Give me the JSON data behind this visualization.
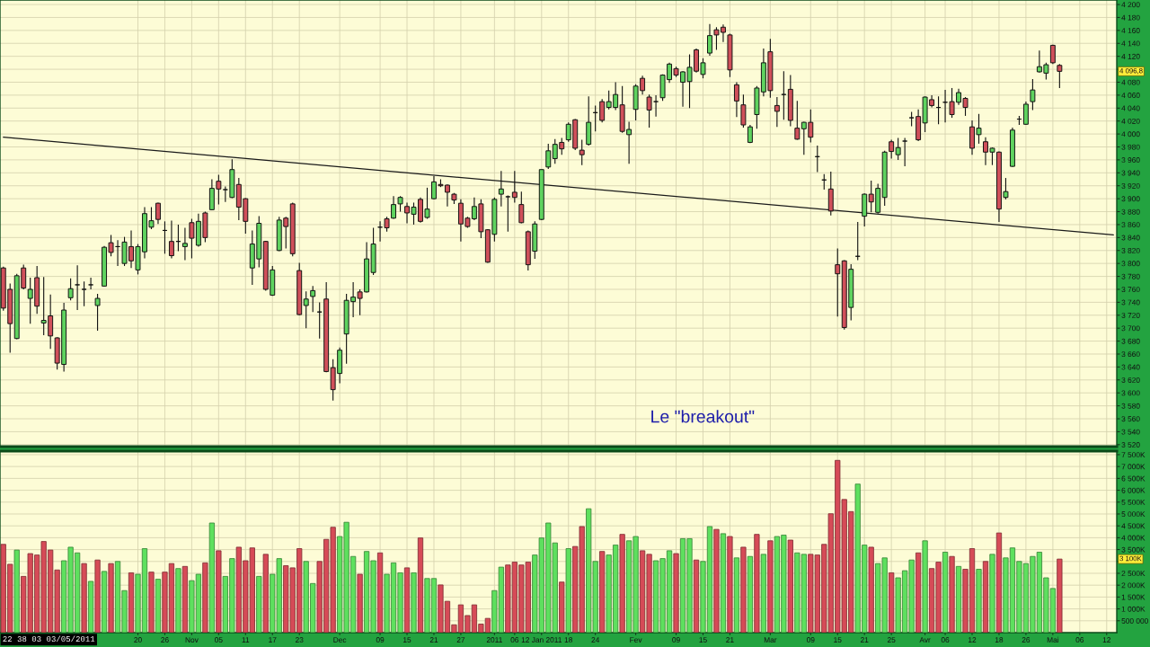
{
  "chart_data": [
    {
      "type": "candlestick",
      "categories": [
        null,
        null,
        null,
        null,
        null,
        null,
        null,
        null,
        null,
        null,
        null,
        null,
        null,
        null,
        null,
        null,
        null,
        null,
        null,
        null,
        null,
        null,
        null,
        null,
        null,
        null,
        null,
        null,
        null,
        null,
        null,
        null,
        null,
        null,
        null,
        null,
        null,
        null,
        null,
        null,
        null,
        null,
        null,
        null,
        null,
        null,
        null,
        null,
        null,
        null,
        null,
        null,
        null,
        null,
        null,
        null,
        null,
        null,
        null,
        null,
        null,
        null,
        null,
        null,
        null,
        null,
        null,
        null,
        null,
        null,
        null,
        null,
        null,
        null,
        null,
        null,
        null,
        null,
        null,
        null,
        null,
        null,
        null,
        null,
        null,
        null,
        null,
        null,
        null,
        null,
        null,
        null,
        null,
        null,
        null,
        null,
        null,
        null,
        null,
        null,
        null,
        null,
        null,
        null,
        null,
        null,
        null,
        null,
        null,
        null,
        null,
        null,
        null,
        null,
        null,
        null,
        null,
        null,
        null,
        null,
        null,
        null,
        null,
        null,
        null,
        null,
        null,
        null,
        null,
        null,
        null,
        null,
        null,
        null,
        null,
        null,
        null,
        null,
        null,
        null,
        null,
        null,
        null,
        null,
        null,
        null,
        null,
        null,
        null,
        null,
        null,
        null,
        null,
        null,
        null,
        null,
        null,
        null,
        null,
        null,
        null,
        null,
        null,
        null,
        null,
        null
      ],
      "ohlc": [
        [
          3793,
          3795,
          3727,
          3731
        ],
        [
          3760,
          3769,
          3662,
          3707
        ],
        [
          3684,
          3784,
          3683,
          3781
        ],
        [
          3793,
          3798,
          3760,
          3762
        ],
        [
          3746,
          3778,
          3707,
          3760
        ],
        [
          3778,
          3796,
          3722,
          3734
        ],
        [
          3708,
          3779,
          3689,
          3712
        ],
        [
          3719,
          3752,
          3668,
          3688
        ],
        [
          3685,
          3686,
          3636,
          3646
        ],
        [
          3644,
          3739,
          3633,
          3728
        ],
        [
          3747,
          3777,
          3743,
          3761
        ],
        [
          3767,
          3797,
          3728,
          3767
        ],
        [
          3760,
          3772,
          3734,
          3760
        ],
        [
          3767,
          3778,
          3760,
          3767
        ],
        [
          3735,
          3753,
          3696,
          3746
        ],
        [
          3765,
          3827,
          3764,
          3825
        ],
        [
          3832,
          3844,
          3811,
          3817
        ],
        [
          3826,
          3836,
          3796,
          3826
        ],
        [
          3800,
          3841,
          3796,
          3833
        ],
        [
          3826,
          3851,
          3793,
          3804
        ],
        [
          3790,
          3830,
          3783,
          3826
        ],
        [
          3818,
          3887,
          3808,
          3877
        ],
        [
          3856,
          3887,
          3853,
          3866
        ],
        [
          3893,
          3894,
          3861,
          3868
        ],
        [
          3851,
          3865,
          3815,
          3851
        ],
        [
          3834,
          3866,
          3808,
          3812
        ],
        [
          3834,
          3860,
          3819,
          3834
        ],
        [
          3826,
          3855,
          3805,
          3831
        ],
        [
          3863,
          3869,
          3808,
          3839
        ],
        [
          3828,
          3877,
          3826,
          3865
        ],
        [
          3878,
          3880,
          3833,
          3840
        ],
        [
          3883,
          3930,
          3882,
          3916
        ],
        [
          3927,
          3937,
          3891,
          3915
        ],
        [
          3914,
          3919,
          3895,
          3914
        ],
        [
          3902,
          3961,
          3901,
          3945
        ],
        [
          3922,
          3932,
          3867,
          3887
        ],
        [
          3900,
          3901,
          3846,
          3865
        ],
        [
          3793,
          3851,
          3767,
          3830
        ],
        [
          3807,
          3873,
          3794,
          3862
        ],
        [
          3834,
          3835,
          3758,
          3760
        ],
        [
          3751,
          3796,
          3750,
          3790
        ],
        [
          3820,
          3872,
          3819,
          3867
        ],
        [
          3870,
          3872,
          3823,
          3857
        ],
        [
          3892,
          3894,
          3811,
          3815
        ],
        [
          3789,
          3801,
          3720,
          3721
        ],
        [
          3735,
          3757,
          3700,
          3745
        ],
        [
          3749,
          3765,
          3725,
          3758
        ],
        [
          3725,
          3740,
          3684,
          3725
        ],
        [
          3745,
          3771,
          3632,
          3633
        ],
        [
          3639,
          3652,
          3588,
          3605
        ],
        [
          3630,
          3670,
          3615,
          3666
        ],
        [
          3691,
          3753,
          3645,
          3743
        ],
        [
          3741,
          3771,
          3717,
          3748
        ],
        [
          3756,
          3760,
          3720,
          3746
        ],
        [
          3756,
          3833,
          3755,
          3807
        ],
        [
          3786,
          3855,
          3782,
          3830
        ],
        [
          3856,
          3865,
          3834,
          3856
        ],
        [
          3869,
          3872,
          3849,
          3855
        ],
        [
          3870,
          3904,
          3869,
          3891
        ],
        [
          3892,
          3904,
          3880,
          3902
        ],
        [
          3888,
          3894,
          3862,
          3878
        ],
        [
          3876,
          3894,
          3860,
          3887
        ],
        [
          3899,
          3902,
          3863,
          3865
        ],
        [
          3871,
          3917,
          3869,
          3884
        ],
        [
          3900,
          3935,
          3899,
          3926
        ],
        [
          3922,
          3930,
          3918,
          3920
        ],
        [
          3921,
          3922,
          3888,
          3910
        ],
        [
          3907,
          3909,
          3892,
          3898
        ],
        [
          3893,
          3899,
          3834,
          3861
        ],
        [
          3870,
          3872,
          3855,
          3857
        ],
        [
          3869,
          3902,
          3867,
          3888
        ],
        [
          3892,
          3899,
          3839,
          3849
        ],
        [
          3852,
          3853,
          3801,
          3802
        ],
        [
          3845,
          3902,
          3834,
          3899
        ],
        [
          3907,
          3943,
          3888,
          3915
        ],
        [
          3903,
          3905,
          3849,
          3903
        ],
        [
          3910,
          3943,
          3894,
          3902
        ],
        [
          3891,
          3911,
          3862,
          3863
        ],
        [
          3849,
          3851,
          3789,
          3798
        ],
        [
          3819,
          3865,
          3807,
          3861
        ],
        [
          3868,
          3945,
          3867,
          3945
        ],
        [
          3949,
          3985,
          3946,
          3974
        ],
        [
          3962,
          3992,
          3954,
          3984
        ],
        [
          3987,
          3994,
          3968,
          3977
        ],
        [
          3991,
          4018,
          3988,
          4015
        ],
        [
          4022,
          4023,
          3975,
          3978
        ],
        [
          3975,
          3991,
          3952,
          3968
        ],
        [
          3984,
          4058,
          3982,
          4018
        ],
        [
          4033,
          4044,
          4004,
          4033
        ],
        [
          4050,
          4054,
          4018,
          4021
        ],
        [
          4041,
          4067,
          4038,
          4050
        ],
        [
          4041,
          4080,
          4037,
          4061
        ],
        [
          4045,
          4074,
          4002,
          4004
        ],
        [
          3999,
          4019,
          3954,
          4007
        ],
        [
          4038,
          4077,
          4021,
          4074
        ],
        [
          4086,
          4090,
          4061,
          4067
        ],
        [
          4057,
          4061,
          4010,
          4037
        ],
        [
          4050,
          4060,
          4027,
          4050
        ],
        [
          4056,
          4092,
          4051,
          4091
        ],
        [
          4084,
          4110,
          4079,
          4108
        ],
        [
          4101,
          4104,
          4088,
          4091
        ],
        [
          4080,
          4097,
          4042,
          4096
        ],
        [
          4081,
          4123,
          4040,
          4103
        ],
        [
          4130,
          4132,
          4095,
          4097
        ],
        [
          4092,
          4117,
          4086,
          4110
        ],
        [
          4125,
          4170,
          4121,
          4152
        ],
        [
          4161,
          4165,
          4130,
          4153
        ],
        [
          4165,
          4169,
          4142,
          4157
        ],
        [
          4153,
          4155,
          4088,
          4099
        ],
        [
          4076,
          4080,
          4026,
          4051
        ],
        [
          4045,
          4061,
          4010,
          4014
        ],
        [
          3987,
          4014,
          3986,
          4011
        ],
        [
          4030,
          4074,
          4008,
          4071
        ],
        [
          4065,
          4132,
          4058,
          4110
        ],
        [
          4127,
          4147,
          4056,
          4067
        ],
        [
          4044,
          4057,
          4011,
          4035
        ],
        [
          4061,
          4097,
          4022,
          4061
        ],
        [
          4069,
          4091,
          4012,
          4021
        ],
        [
          4009,
          4051,
          3991,
          3992
        ],
        [
          4008,
          4019,
          3968,
          4018
        ],
        [
          4018,
          4038,
          3987,
          3995
        ],
        [
          3965,
          3982,
          3941,
          3965
        ],
        [
          3929,
          3938,
          3914,
          3929
        ],
        [
          3915,
          3942,
          3874,
          3881
        ],
        [
          3798,
          3823,
          3718,
          3784
        ],
        [
          3804,
          3805,
          3698,
          3701
        ],
        [
          3732,
          3799,
          3712,
          3791
        ],
        [
          3811,
          3864,
          3805,
          3811
        ],
        [
          3873,
          3908,
          3857,
          3907
        ],
        [
          3907,
          3928,
          3879,
          3895
        ],
        [
          3879,
          3923,
          3877,
          3916
        ],
        [
          3902,
          3974,
          3889,
          3972
        ],
        [
          3988,
          3991,
          3962,
          3973
        ],
        [
          3968,
          3994,
          3960,
          3979
        ],
        [
          3989,
          3994,
          3950,
          3989
        ],
        [
          4025,
          4034,
          4012,
          4025
        ],
        [
          4027,
          4038,
          3989,
          3991
        ],
        [
          4017,
          4058,
          4003,
          4057
        ],
        [
          4053,
          4060,
          4041,
          4044
        ],
        [
          4041,
          4058,
          4015,
          4041
        ],
        [
          4049,
          4068,
          4018,
          4049
        ],
        [
          4050,
          4071,
          4025,
          4030
        ],
        [
          4049,
          4070,
          4045,
          4064
        ],
        [
          4055,
          4057,
          4028,
          4041
        ],
        [
          4011,
          4021,
          3968,
          3978
        ],
        [
          3999,
          4031,
          3985,
          4009
        ],
        [
          3988,
          3995,
          3952,
          3972
        ],
        [
          3972,
          3979,
          3952,
          3978
        ],
        [
          3972,
          3973,
          3864,
          3884
        ],
        [
          3902,
          3932,
          3899,
          3911
        ],
        [
          3950,
          4010,
          3949,
          4006
        ],
        [
          4023,
          4028,
          4014,
          4023
        ],
        [
          4015,
          4050,
          4014,
          4046
        ],
        [
          4050,
          4085,
          4037,
          4068
        ],
        [
          4096,
          4129,
          4095,
          4104
        ],
        [
          4094,
          4110,
          4084,
          4107
        ],
        [
          4137,
          4138,
          4108,
          4110
        ],
        [
          4106,
          4108,
          4071,
          4096.8
        ],
        null,
        null,
        null,
        null,
        null,
        null,
        null,
        null
      ],
      "colors": [
        "#d0505a",
        "#d0505a",
        "#5fd35f",
        "#d0505a",
        "#5fd35f",
        "#d0505a",
        "#5fd35f",
        "#d0505a",
        "#d0505a",
        "#5fd35f",
        "#5fd35f",
        "#111111",
        "#111111",
        "#111111",
        "#5fd35f",
        "#5fd35f",
        "#d0505a",
        "#111111",
        "#5fd35f",
        "#d0505a",
        "#5fd35f",
        "#5fd35f",
        "#5fd35f",
        "#d0505a",
        "#111111",
        "#d0505a",
        "#111111",
        "#5fd35f",
        "#d0505a",
        "#5fd35f",
        "#d0505a",
        "#5fd35f",
        "#d0505a",
        "#111111",
        "#5fd35f",
        "#d0505a",
        "#d0505a",
        "#5fd35f",
        "#5fd35f",
        "#d0505a",
        "#5fd35f",
        "#5fd35f",
        "#d0505a",
        "#d0505a",
        "#d0505a",
        "#5fd35f",
        "#5fd35f",
        "#111111",
        "#d0505a",
        "#d0505a",
        "#5fd35f",
        "#5fd35f",
        "#5fd35f",
        "#d0505a",
        "#5fd35f",
        "#5fd35f",
        "#111111",
        "#d0505a",
        "#5fd35f",
        "#5fd35f",
        "#d0505a",
        "#5fd35f",
        "#d0505a",
        "#5fd35f",
        "#5fd35f",
        "#d0505a",
        "#d0505a",
        "#d0505a",
        "#d0505a",
        "#d0505a",
        "#5fd35f",
        "#d0505a",
        "#d0505a",
        "#5fd35f",
        "#5fd35f",
        "#111111",
        "#d0505a",
        "#d0505a",
        "#d0505a",
        "#5fd35f",
        "#5fd35f",
        "#5fd35f",
        "#5fd35f",
        "#d0505a",
        "#5fd35f",
        "#d0505a",
        "#d0505a",
        "#5fd35f",
        "#111111",
        "#d0505a",
        "#5fd35f",
        "#5fd35f",
        "#d0505a",
        "#5fd35f",
        "#5fd35f",
        "#d0505a",
        "#d0505a",
        "#111111",
        "#5fd35f",
        "#5fd35f",
        "#d0505a",
        "#5fd35f",
        "#5fd35f",
        "#d0505a",
        "#5fd35f",
        "#5fd35f",
        "#d0505a",
        "#d0505a",
        "#d0505a",
        "#d0505a",
        "#d0505a",
        "#5fd35f",
        "#5fd35f",
        "#5fd35f",
        "#d0505a",
        "#d0505a",
        "#111111",
        "#d0505a",
        "#d0505a",
        "#5fd35f",
        "#d0505a",
        "#111111",
        "#111111",
        "#d0505a",
        "#d0505a",
        "#d0505a",
        "#5fd35f",
        "#111111",
        "#5fd35f",
        "#d0505a",
        "#5fd35f",
        "#5fd35f",
        "#d0505a",
        "#5fd35f",
        "#111111",
        "#111111",
        "#d0505a",
        "#5fd35f",
        "#d0505a",
        "#111111",
        "#111111",
        "#d0505a",
        "#5fd35f",
        "#d0505a",
        "#d0505a",
        "#5fd35f",
        "#d0505a",
        "#5fd35f",
        "#d0505a",
        "#5fd35f",
        "#5fd35f",
        "#111111",
        "#5fd35f",
        "#5fd35f",
        "#5fd35f",
        "#5fd35f",
        "#d0505a",
        "#d0505a",
        null,
        null,
        null,
        null,
        null,
        null,
        null,
        null
      ],
      "series": [
        {
          "type": "line",
          "color": "#1a1a1a",
          "values": [
            3995,
            null,
            null,
            null,
            null,
            null,
            null,
            null,
            null,
            null,
            null,
            null,
            null,
            null,
            null,
            null,
            null,
            null,
            null,
            null,
            null,
            null,
            null,
            null,
            null,
            null,
            null,
            null,
            null,
            null,
            null,
            null,
            null,
            null,
            null,
            null,
            null,
            null,
            null,
            null,
            null,
            null,
            null,
            null,
            null,
            null,
            null,
            null,
            null,
            null,
            null,
            null,
            null,
            null,
            null,
            null,
            null,
            null,
            null,
            null,
            null,
            null,
            null,
            null,
            null,
            null,
            null,
            null,
            null,
            null,
            null,
            null,
            null,
            null,
            null,
            null,
            null,
            null,
            null,
            null,
            null,
            null,
            null,
            null,
            null,
            null,
            null,
            null,
            null,
            null,
            null,
            null,
            null,
            null,
            null,
            null,
            null,
            null,
            null,
            null,
            null,
            null,
            null,
            null,
            null,
            null,
            null,
            null,
            null,
            null,
            null,
            null,
            null,
            null,
            null,
            null,
            null,
            null,
            null,
            null,
            null,
            null,
            null,
            null,
            null,
            null,
            null,
            null,
            null,
            null,
            null,
            null,
            null,
            null,
            null,
            null,
            null,
            null,
            null,
            null,
            null,
            null,
            null,
            null,
            null,
            null,
            null,
            null,
            null,
            null,
            null,
            null,
            null,
            null,
            null,
            null,
            null,
            null,
            null,
            null,
            null,
            null,
            null,
            null,
            null,
            3844
          ]
        }
      ],
      "ylim": [
        3517,
        4207
      ],
      "yticks": [
        {
          "value": 3520,
          "label": "3 520"
        },
        {
          "value": 3540,
          "label": "3 540"
        },
        {
          "value": 3560,
          "label": "3 560"
        },
        {
          "value": 3580,
          "label": "3 580"
        },
        {
          "value": 3600,
          "label": "3 600"
        },
        {
          "value": 3620,
          "label": "3 620"
        },
        {
          "value": 3640,
          "label": "3 640"
        },
        {
          "value": 3660,
          "label": "3 660"
        },
        {
          "value": 3680,
          "label": "3 680"
        },
        {
          "value": 3700,
          "label": "3 700"
        },
        {
          "value": 3720,
          "label": "3 720"
        },
        {
          "value": 3740,
          "label": "3 740"
        },
        {
          "value": 3760,
          "label": "3 760"
        },
        {
          "value": 3780,
          "label": "3 780"
        },
        {
          "value": 3800,
          "label": "3 800"
        },
        {
          "value": 3820,
          "label": "3 820"
        },
        {
          "value": 3840,
          "label": "3 840"
        },
        {
          "value": 3860,
          "label": "3 860"
        },
        {
          "value": 3880,
          "label": "3 880"
        },
        {
          "value": 3900,
          "label": "3 900"
        },
        {
          "value": 3920,
          "label": "3 920"
        },
        {
          "value": 3940,
          "label": "3 940"
        },
        {
          "value": 3960,
          "label": "3 960"
        },
        {
          "value": 3980,
          "label": "3 980"
        },
        {
          "value": 4000,
          "label": "4 000"
        },
        {
          "value": 4020,
          "label": "4 020"
        },
        {
          "value": 4040,
          "label": "4 040"
        },
        {
          "value": 4060,
          "label": "4 060"
        },
        {
          "value": 4080,
          "label": "4 080"
        },
        {
          "value": 4100,
          "label": null
        },
        {
          "value": 4120,
          "label": "4 120"
        },
        {
          "value": 4140,
          "label": "4 140"
        },
        {
          "value": 4160,
          "label": "4 160"
        },
        {
          "value": 4180,
          "label": "4 180"
        },
        {
          "value": 4200,
          "label": "4 200"
        }
      ],
      "tick_labels": "y",
      "grid": true,
      "annotations": [
        {
          "text": "4 096,8",
          "y": 4096.8
        },
        "Le \"breakout\""
      ]
    },
    {
      "type": "bar",
      "categories": [
        null,
        null,
        null,
        null,
        null,
        null,
        null,
        null,
        null,
        null,
        null,
        null,
        null,
        null,
        null,
        null,
        null,
        null,
        null,
        null,
        "20",
        null,
        null,
        null,
        "26",
        null,
        null,
        null,
        "Nov",
        null,
        null,
        null,
        "05",
        null,
        null,
        null,
        "11",
        null,
        null,
        null,
        "17",
        null,
        null,
        null,
        "23",
        null,
        null,
        null,
        null,
        null,
        "Dec",
        null,
        null,
        null,
        null,
        null,
        "09",
        null,
        null,
        null,
        "15",
        null,
        null,
        null,
        "21",
        null,
        null,
        null,
        "27",
        null,
        null,
        null,
        null,
        "2011",
        null,
        null,
        "06",
        null,
        null,
        null,
        "12 Jan 2011",
        null,
        null,
        null,
        "18",
        null,
        null,
        null,
        "24",
        null,
        null,
        null,
        null,
        null,
        "Fev",
        null,
        null,
        null,
        null,
        null,
        "09",
        null,
        null,
        null,
        "15",
        null,
        null,
        null,
        "21",
        null,
        null,
        null,
        null,
        null,
        "Mar",
        null,
        null,
        null,
        null,
        null,
        "09",
        null,
        null,
        null,
        "15",
        null,
        null,
        null,
        "21",
        null,
        null,
        null,
        "25",
        null,
        null,
        null,
        null,
        "Avr",
        null,
        null,
        "06",
        null,
        null,
        null,
        "12",
        null,
        null,
        null,
        "18",
        null,
        null,
        null,
        "26",
        null,
        null,
        null,
        "Mai",
        null,
        null,
        null,
        "06",
        null,
        null,
        null,
        "12",
        null
      ],
      "values": [
        3720000,
        2880000,
        3480000,
        2370000,
        3330000,
        3270000,
        3840000,
        3480000,
        2640000,
        3030000,
        3600000,
        3360000,
        2910000,
        2160000,
        3060000,
        2580000,
        2910000,
        3000000,
        1770000,
        2520000,
        2460000,
        3540000,
        2550000,
        2250000,
        2550000,
        2910000,
        2700000,
        2790000,
        2190000,
        2460000,
        2940000,
        4620000,
        3450000,
        2370000,
        3120000,
        3600000,
        3030000,
        3570000,
        2370000,
        3300000,
        2460000,
        3120000,
        2820000,
        2730000,
        3540000,
        3000000,
        2070000,
        3000000,
        3930000,
        4440000,
        4050000,
        4650000,
        3210000,
        2460000,
        3420000,
        3030000,
        3360000,
        2460000,
        2940000,
        2520000,
        2730000,
        2520000,
        3990000,
        2280000,
        2280000,
        2010000,
        1320000,
        330000,
        1170000,
        720000,
        1170000,
        360000,
        600000,
        1770000,
        2760000,
        2850000,
        2970000,
        2850000,
        2970000,
        3270000,
        3990000,
        4620000,
        3780000,
        2130000,
        3540000,
        3630000,
        4470000,
        5220000,
        3000000,
        3420000,
        3270000,
        3690000,
        4140000,
        3870000,
        4050000,
        3450000,
        3300000,
        3030000,
        3120000,
        3450000,
        3330000,
        3960000,
        3960000,
        3060000,
        3000000,
        4470000,
        4350000,
        4170000,
        4050000,
        3150000,
        3600000,
        3210000,
        4140000,
        3300000,
        3870000,
        4050000,
        4110000,
        3900000,
        3360000,
        3300000,
        3300000,
        3270000,
        3720000,
        5010000,
        7260000,
        5610000,
        5100000,
        6260000,
        3690000,
        3600000,
        2910000,
        3150000,
        2520000,
        2310000,
        2610000,
        3060000,
        3360000,
        3870000,
        2700000,
        2970000,
        3390000,
        3210000,
        2790000,
        2670000,
        3540000,
        2670000,
        3000000,
        3300000,
        4200000,
        3150000,
        3570000,
        3000000,
        2910000,
        3210000,
        3390000,
        2310000,
        1860000,
        3100000,
        null,
        null,
        null,
        null,
        null,
        null,
        null,
        null
      ],
      "colors": [
        "#d64b57",
        "#d64b57",
        "#5ee05e",
        "#d64b57",
        "#d64b57",
        "#d64b57",
        "#d64b57",
        "#d64b57",
        "#d64b57",
        "#5ee05e",
        "#5ee05e",
        "#5ee05e",
        "#d64b57",
        "#5ee05e",
        "#d64b57",
        "#5ee05e",
        "#d64b57",
        "#5ee05e",
        "#5ee05e",
        "#d64b57",
        "#5ee05e",
        "#5ee05e",
        "#d64b57",
        "#5ee05e",
        "#d64b57",
        "#d64b57",
        "#5ee05e",
        "#d64b57",
        "#5ee05e",
        "#5ee05e",
        "#d64b57",
        "#5ee05e",
        "#d64b57",
        "#5ee05e",
        "#5ee05e",
        "#d64b57",
        "#d64b57",
        "#d64b57",
        "#5ee05e",
        "#d64b57",
        "#5ee05e",
        "#5ee05e",
        "#d64b57",
        "#d64b57",
        "#d64b57",
        "#5ee05e",
        "#5ee05e",
        "#d64b57",
        "#d64b57",
        "#d64b57",
        "#5ee05e",
        "#5ee05e",
        "#5ee05e",
        "#d64b57",
        "#5ee05e",
        "#5ee05e",
        "#d64b57",
        "#5ee05e",
        "#5ee05e",
        "#5ee05e",
        "#d64b57",
        "#5ee05e",
        "#d64b57",
        "#5ee05e",
        "#5ee05e",
        "#d64b57",
        "#d64b57",
        "#d64b57",
        "#d64b57",
        "#d64b57",
        "#d64b57",
        "#d64b57",
        "#d64b57",
        "#5ee05e",
        "#5ee05e",
        "#d64b57",
        "#d64b57",
        "#d64b57",
        "#d64b57",
        "#5ee05e",
        "#5ee05e",
        "#5ee05e",
        "#5ee05e",
        "#d64b57",
        "#5ee05e",
        "#d64b57",
        "#d64b57",
        "#5ee05e",
        "#5ee05e",
        "#d64b57",
        "#5ee05e",
        "#5ee05e",
        "#d64b57",
        "#5ee05e",
        "#5ee05e",
        "#d64b57",
        "#d64b57",
        "#5ee05e",
        "#5ee05e",
        "#5ee05e",
        "#d64b57",
        "#5ee05e",
        "#5ee05e",
        "#d64b57",
        "#5ee05e",
        "#5ee05e",
        "#d64b57",
        "#5ee05e",
        "#d64b57",
        "#5ee05e",
        "#d64b57",
        "#5ee05e",
        "#d64b57",
        "#5ee05e",
        "#d64b57",
        "#5ee05e",
        "#5ee05e",
        "#d64b57",
        "#5ee05e",
        "#5ee05e",
        "#d64b57",
        "#d64b57",
        "#d64b57",
        "#d64b57",
        "#d64b57",
        "#d64b57",
        "#d64b57",
        "#5ee05e",
        "#5ee05e",
        "#d64b57",
        "#5ee05e",
        "#5ee05e",
        "#d64b57",
        "#5ee05e",
        "#5ee05e",
        "#5ee05e",
        "#d64b57",
        "#5ee05e",
        "#d64b57",
        "#d64b57",
        "#5ee05e",
        "#d64b57",
        "#5ee05e",
        "#d64b57",
        "#d64b57",
        "#5ee05e",
        "#d64b57",
        "#5ee05e",
        "#d64b57",
        "#5ee05e",
        "#5ee05e",
        "#5ee05e",
        "#5ee05e",
        "#5ee05e",
        "#5ee05e",
        "#5ee05e",
        "#5ee05e",
        "#d64b57",
        null,
        null,
        null,
        null,
        null,
        null,
        null,
        null
      ],
      "ylim": [
        0,
        7650000
      ],
      "yticks": [
        {
          "value": 500000,
          "label": "500 000"
        },
        {
          "value": 1000000,
          "label": "1 000K"
        },
        {
          "value": 1500000,
          "label": "1 500K"
        },
        {
          "value": 2000000,
          "label": "2 000K"
        },
        {
          "value": 2500000,
          "label": "2 500K"
        },
        {
          "value": 3000000,
          "label": null
        },
        {
          "value": 3500000,
          "label": "3 500K"
        },
        {
          "value": 4000000,
          "label": "4 000K"
        },
        {
          "value": 4500000,
          "label": "4 500K"
        },
        {
          "value": 5000000,
          "label": "5 000K"
        },
        {
          "value": 5500000,
          "label": "5 500K"
        },
        {
          "value": 6000000,
          "label": "6 000K"
        },
        {
          "value": 6500000,
          "label": "6 500K"
        },
        {
          "value": 7000000,
          "label": "7 000K"
        },
        {
          "value": 7500000,
          "label": "7 500K"
        }
      ],
      "grid": true,
      "annotations": [
        {
          "text": "3 100K",
          "y": 3100000
        },
        "22 38 03 03/05/2011"
      ]
    }
  ]
}
